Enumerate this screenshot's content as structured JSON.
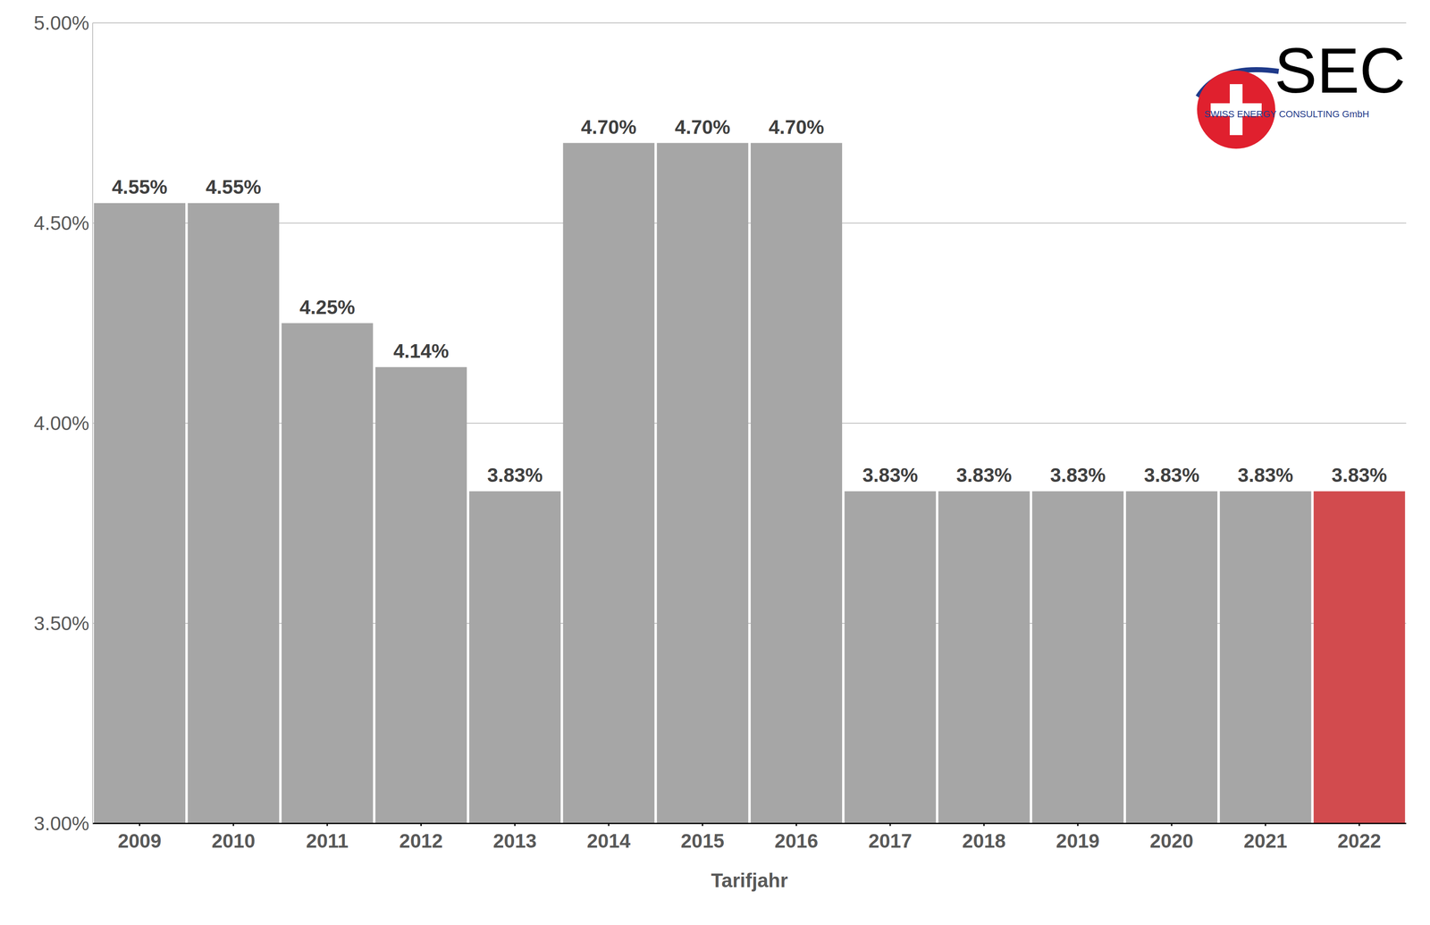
{
  "chart_data": {
    "type": "bar",
    "x_label": "Tarifjahr",
    "annotations": [
      "SEC",
      "SWISS ENERGY CONSULTING GmbH"
    ],
    "categories": [
      "2009",
      "2010",
      "2011",
      "2012",
      "2013",
      "2014",
      "2015",
      "2016",
      "2017",
      "2018",
      "2019",
      "2020",
      "2021",
      "2022"
    ],
    "values": [
      4.55,
      4.55,
      4.25,
      4.14,
      3.83,
      4.7,
      4.7,
      4.7,
      3.83,
      3.83,
      3.83,
      3.83,
      3.83,
      3.83
    ],
    "value_labels": [
      "4.55%",
      "4.55%",
      "4.25%",
      "4.14%",
      "3.83%",
      "4.70%",
      "4.70%",
      "4.70%",
      "3.83%",
      "3.83%",
      "3.83%",
      "3.83%",
      "3.83%",
      "3.83%"
    ],
    "colors": [
      "#a6a6a6",
      "#a6a6a6",
      "#a6a6a6",
      "#a6a6a6",
      "#a6a6a6",
      "#a6a6a6",
      "#a6a6a6",
      "#a6a6a6",
      "#a6a6a6",
      "#a6a6a6",
      "#a6a6a6",
      "#a6a6a6",
      "#a6a6a6",
      "#d24b4e"
    ],
    "ylim": [
      3,
      5
    ],
    "yticks": [
      {
        "value": 3,
        "label": "3.00%"
      },
      {
        "value": 3.5,
        "label": "3.50%"
      },
      {
        "value": 4,
        "label": "4.00%"
      },
      {
        "value": 4.5,
        "label": "4.50%"
      },
      {
        "value": 5,
        "label": "5.00%"
      }
    ],
    "grid": true,
    "data_labels": true
  }
}
